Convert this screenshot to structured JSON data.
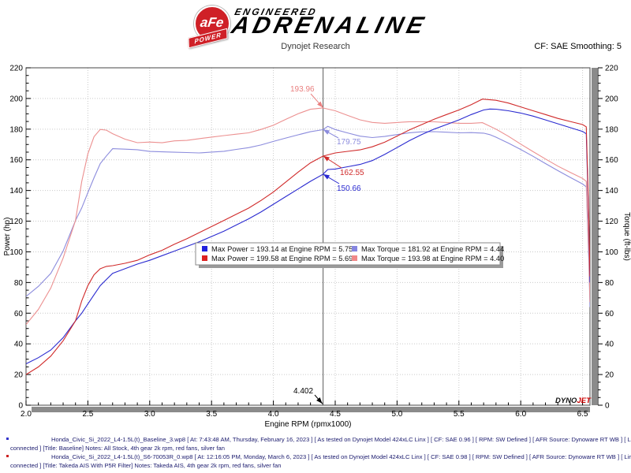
{
  "header": {
    "logo": {
      "circle_text": "aFe",
      "banner_text": "POWER",
      "line1": "ENGINEERED",
      "line2": "ADRENALINE"
    },
    "subtitle": "Dynojet Research",
    "smoothing": "CF: SAE Smoothing: 5"
  },
  "watermark": {
    "dyno": "DYNO",
    "jet": "JET"
  },
  "chart_data": {
    "type": "line",
    "title": "Dynojet Research",
    "xlabel": "Engine RPM (rpmx1000)",
    "ylabel_left": "Power (hp)",
    "ylabel_right": "Torque (ft-lbs)",
    "xlim": [
      2.0,
      6.56
    ],
    "ylim": [
      0,
      220
    ],
    "x_major_step": 0.5,
    "x_minor_step": 0.1,
    "y_major_step": 20,
    "y_minor_step": 5,
    "grid": "dotted",
    "cursor": {
      "rpm": 4.402,
      "label": "4.402"
    },
    "torque_note": "torque curves = power * 5252 / rpm",
    "series": [
      {
        "name": "baseline-power",
        "kind": "power",
        "color": "#2a2ad0",
        "points": [
          [
            2.0,
            27
          ],
          [
            2.1,
            31
          ],
          [
            2.2,
            36
          ],
          [
            2.3,
            44
          ],
          [
            2.4,
            55
          ],
          [
            2.45,
            60
          ],
          [
            2.5,
            66
          ],
          [
            2.55,
            72
          ],
          [
            2.6,
            78
          ],
          [
            2.65,
            82
          ],
          [
            2.7,
            86
          ],
          [
            2.8,
            89
          ],
          [
            2.9,
            92
          ],
          [
            3.0,
            94.5
          ],
          [
            3.1,
            97.5
          ],
          [
            3.2,
            100.5
          ],
          [
            3.3,
            103.5
          ],
          [
            3.4,
            106.5
          ],
          [
            3.5,
            110
          ],
          [
            3.6,
            113.5
          ],
          [
            3.7,
            117.5
          ],
          [
            3.8,
            121.5
          ],
          [
            3.9,
            126
          ],
          [
            4.0,
            131
          ],
          [
            4.1,
            136
          ],
          [
            4.2,
            141
          ],
          [
            4.3,
            146
          ],
          [
            4.4,
            150.5
          ],
          [
            4.44,
            153.7
          ],
          [
            4.5,
            154
          ],
          [
            4.6,
            155.5
          ],
          [
            4.7,
            157
          ],
          [
            4.8,
            159.5
          ],
          [
            4.9,
            163.5
          ],
          [
            5.0,
            168
          ],
          [
            5.1,
            172.5
          ],
          [
            5.2,
            176.5
          ],
          [
            5.3,
            180
          ],
          [
            5.4,
            183
          ],
          [
            5.5,
            186
          ],
          [
            5.6,
            189.5
          ],
          [
            5.7,
            192.5
          ],
          [
            5.75,
            193.14
          ],
          [
            5.8,
            193
          ],
          [
            5.9,
            192
          ],
          [
            6.0,
            190.5
          ],
          [
            6.1,
            188.5
          ],
          [
            6.2,
            186
          ],
          [
            6.3,
            183.5
          ],
          [
            6.4,
            181
          ],
          [
            6.5,
            178.5
          ],
          [
            6.53,
            177
          ],
          [
            6.55,
            120
          ],
          [
            6.56,
            80
          ]
        ]
      },
      {
        "name": "takeda-power",
        "kind": "power",
        "color": "#d02a2a",
        "points": [
          [
            2.0,
            20
          ],
          [
            2.1,
            25
          ],
          [
            2.2,
            32
          ],
          [
            2.3,
            42
          ],
          [
            2.4,
            55
          ],
          [
            2.45,
            68
          ],
          [
            2.5,
            78
          ],
          [
            2.55,
            85
          ],
          [
            2.6,
            89
          ],
          [
            2.65,
            90.5
          ],
          [
            2.7,
            91
          ],
          [
            2.8,
            92.5
          ],
          [
            2.9,
            94.5
          ],
          [
            3.0,
            98
          ],
          [
            3.1,
            101
          ],
          [
            3.2,
            105
          ],
          [
            3.3,
            108.5
          ],
          [
            3.4,
            112.5
          ],
          [
            3.5,
            116.5
          ],
          [
            3.6,
            120.5
          ],
          [
            3.7,
            124.5
          ],
          [
            3.8,
            128.5
          ],
          [
            3.9,
            133.5
          ],
          [
            4.0,
            139
          ],
          [
            4.1,
            145.5
          ],
          [
            4.2,
            152
          ],
          [
            4.3,
            158
          ],
          [
            4.4,
            162.4
          ],
          [
            4.5,
            164.5
          ],
          [
            4.6,
            165.5
          ],
          [
            4.7,
            166.5
          ],
          [
            4.8,
            168.5
          ],
          [
            4.9,
            171.5
          ],
          [
            5.0,
            175.5
          ],
          [
            5.1,
            179.5
          ],
          [
            5.2,
            183
          ],
          [
            5.3,
            186.5
          ],
          [
            5.4,
            189.5
          ],
          [
            5.5,
            192.5
          ],
          [
            5.6,
            196
          ],
          [
            5.69,
            199.58
          ],
          [
            5.8,
            198.8
          ],
          [
            5.9,
            197
          ],
          [
            6.0,
            194.5
          ],
          [
            6.1,
            192
          ],
          [
            6.2,
            189.5
          ],
          [
            6.3,
            187
          ],
          [
            6.4,
            185
          ],
          [
            6.5,
            183
          ],
          [
            6.53,
            181.5
          ],
          [
            6.55,
            125
          ],
          [
            6.56,
            84
          ]
        ]
      },
      {
        "name": "baseline-torque",
        "kind": "torque",
        "color": "#8c8cdd",
        "derived_from": "baseline-power",
        "peak": {
          "value": 181.92,
          "rpm": 4.44
        }
      },
      {
        "name": "takeda-torque",
        "kind": "torque",
        "color": "#ec9090",
        "derived_from": "takeda-power",
        "peak": {
          "value": 193.98,
          "rpm": 4.4
        }
      }
    ],
    "legend": {
      "items": [
        {
          "color": "#2121dd",
          "label": "Max Power = 193.14 at Engine RPM = 5.75"
        },
        {
          "color": "#dd2121",
          "label": "Max Power = 199.58 at Engine RPM = 5.69"
        },
        {
          "color": "#8585e0",
          "label": "Max Torque = 181.92 at Engine RPM = 4.44"
        },
        {
          "color": "#f08888",
          "label": "Max Torque = 193.98 at Engine RPM = 4.40"
        }
      ]
    },
    "annotations": [
      {
        "label": "193.96",
        "color": "#e98080",
        "text": [
          368,
          116
        ],
        "from": [
          394,
          119
        ],
        "tip_rpm": 4.402,
        "tip_val": 193.96
      },
      {
        "label": "179.75",
        "color": "#8c8cdd",
        "text": [
          427,
          183
        ],
        "from": [
          429,
          175
        ],
        "tip_rpm": 4.402,
        "tip_val": 179.75
      },
      {
        "label": "162.55",
        "color": "#d02a2a",
        "text": [
          431,
          222
        ],
        "from": [
          433,
          213
        ],
        "tip_rpm": 4.402,
        "tip_val": 162.55
      },
      {
        "label": "150.66",
        "color": "#2a2ad0",
        "text": [
          427,
          242
        ],
        "from": [
          430,
          233
        ],
        "tip_rpm": 4.402,
        "tip_val": 150.66
      }
    ]
  },
  "footer": {
    "runs": [
      {
        "bullet_color": "#3333cc",
        "line1": "Honda_Civic_Si_2022_L4-1.5L(t)_Baseline_3.wp8 [ At: 7:43:48 AM, Thursday, February 16, 2023 ] [ As tested on Dynojet Model 424xLC Linx ] [ CF: SAE 0.96 ] [ RPM: SW Defined ] [ AFR Source: Dynoware RT WB ] [ Linx not",
        "line2": "connected ] [Title: Baseline]  Notes: All Stock, 4th gear 2k rpm, red fans, silver fan"
      },
      {
        "bullet_color": "#cc2222",
        "line1": "Honda_Civic_Si_2022_L4-1.5L(t)_S6-70053R_0.wp8 [ At: 12:16:05 PM, Monday, March 6, 2023 ] [ As tested on Dynojet Model 424xLC Linx ] [ CF: SAE 0.98 ] [ RPM: SW Defined ] [ AFR Source: Dynoware RT WB ] [ Linx not",
        "line2": "connected ] [Title: Takeda AIS With P5R Filter]  Notes: Takeda AIS, 4th gear 2k rpm, red fans, silver fan"
      }
    ]
  }
}
